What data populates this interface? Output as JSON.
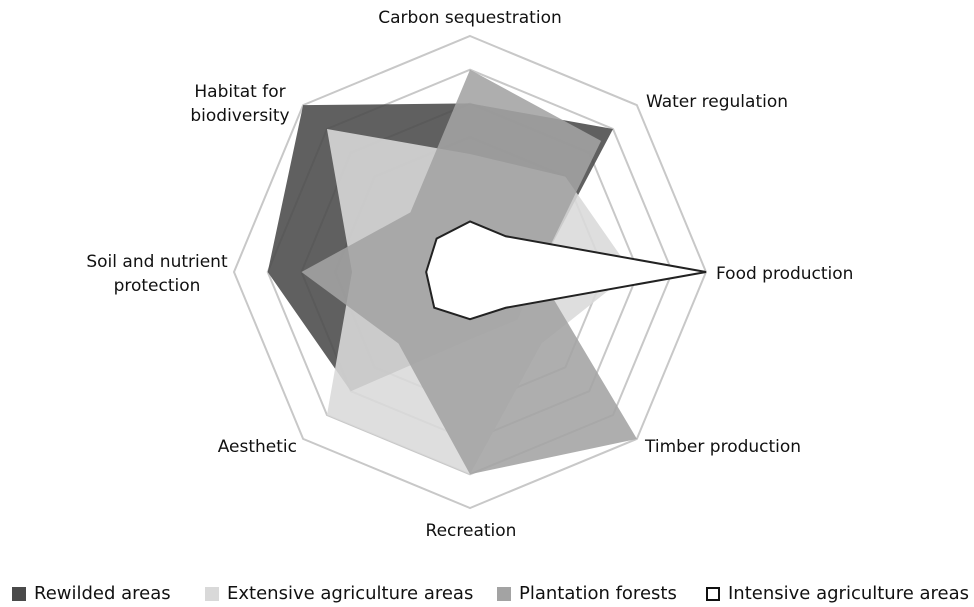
{
  "chart_data": {
    "type": "radar",
    "categories": [
      "Carbon sequestration",
      "Water regulation",
      "Food production",
      "Timber production",
      "Recreation",
      "Aesthetic",
      "Soil and nutrient protection",
      "Habitat for biodiversity"
    ],
    "rlim": [
      0,
      7
    ],
    "rticks": [
      4,
      5,
      6,
      7
    ],
    "grid": true,
    "legend": "bottom",
    "series": [
      {
        "name": "Rewilded areas",
        "color": "#4a4a4a",
        "values": [
          5,
          6,
          2,
          2,
          2,
          5,
          6,
          7
        ]
      },
      {
        "name": "Extensive agriculture areas",
        "color": "#d9d9d9",
        "values": [
          3.5,
          4,
          4.8,
          3,
          6,
          6,
          3.5,
          6
        ]
      },
      {
        "name": "Plantation forests",
        "color": "#a3a3a3",
        "values": [
          6,
          5.5,
          2,
          7,
          6,
          3,
          5,
          2.5
        ]
      },
      {
        "name": "Intensive agriculture areas",
        "color": "#ffffff",
        "values": [
          1.5,
          1.5,
          7,
          1.5,
          1.4,
          1.5,
          1.3,
          1.4
        ]
      }
    ]
  }
}
